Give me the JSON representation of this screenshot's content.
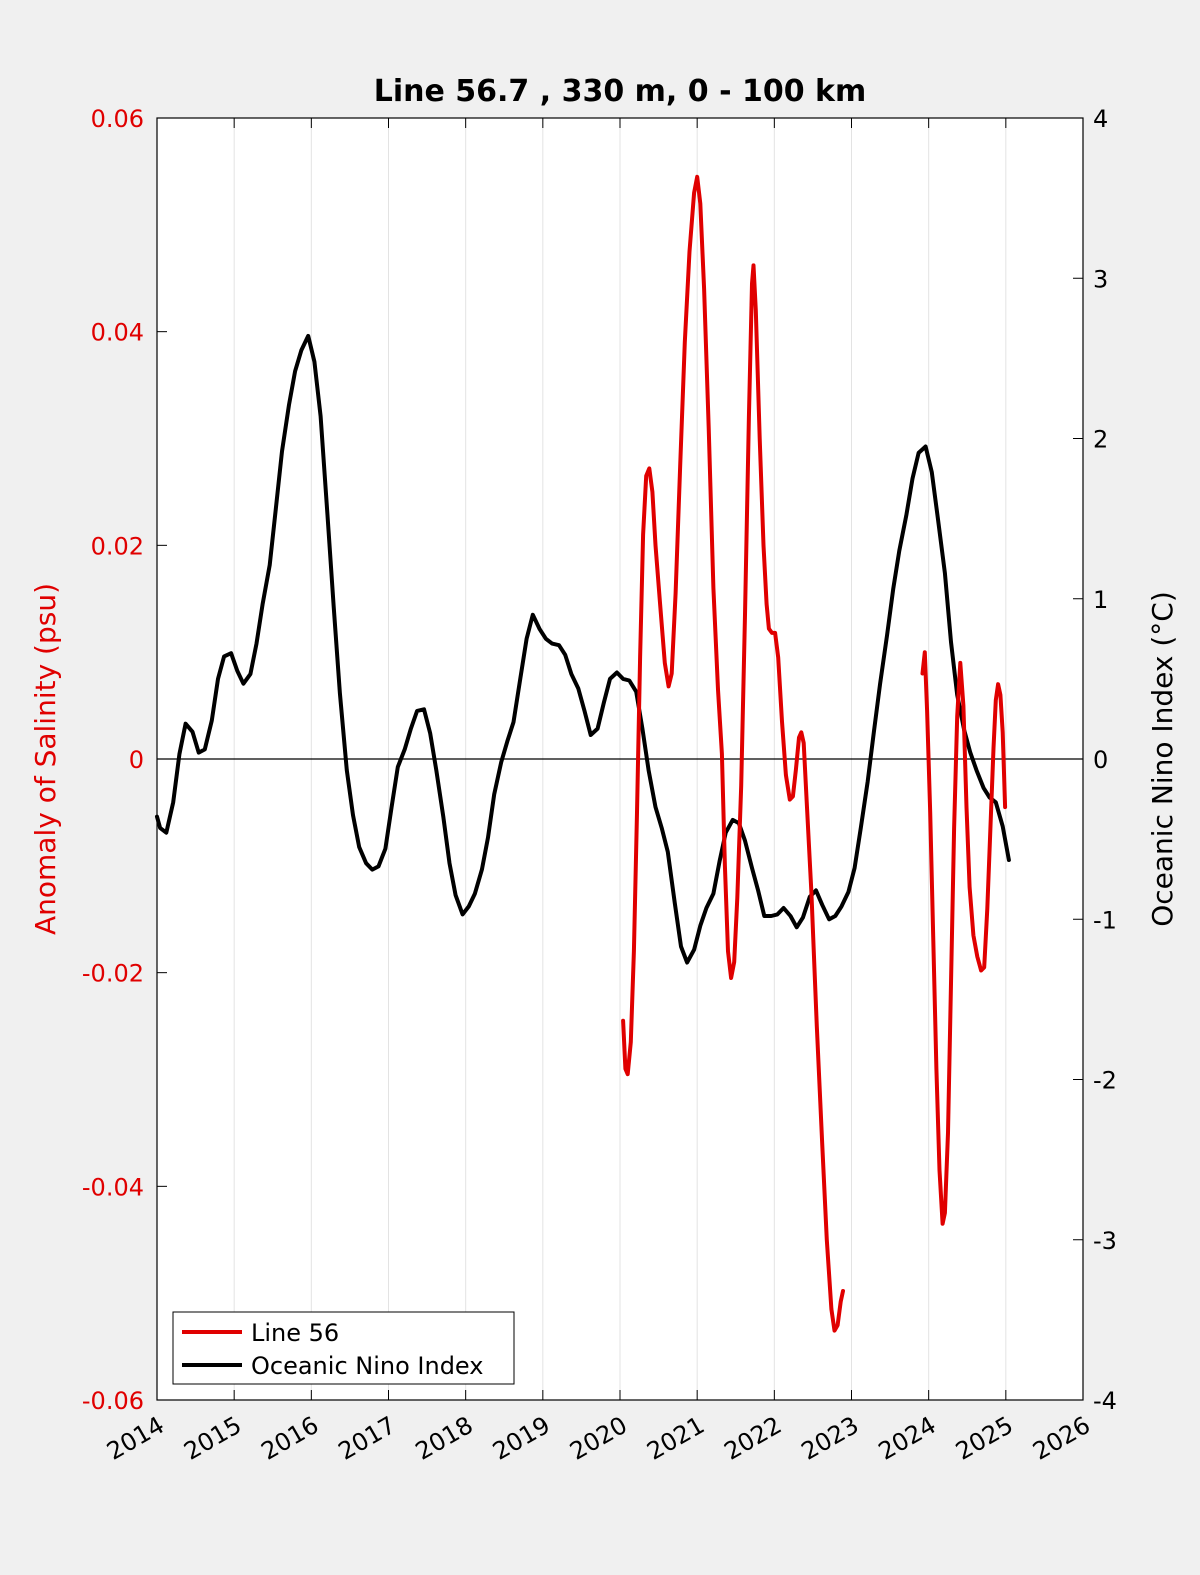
{
  "chart_data": {
    "type": "line",
    "title": "Line 56.7 , 330 m, 0 - 100 km",
    "xlabel": "",
    "ylabel_left": "Anomaly of Salinity (psu)",
    "ylabel_right": "Oceanic Nino Index (°C)",
    "xlim": [
      2014,
      2026
    ],
    "ylim_left": [
      -0.06,
      0.06
    ],
    "ylim_right": [
      -4,
      4
    ],
    "x_ticks": [
      "2014",
      "2015",
      "2016",
      "2017",
      "2018",
      "2019",
      "2020",
      "2021",
      "2022",
      "2023",
      "2024",
      "2025",
      "2026"
    ],
    "y_ticks_left": [
      "-0.06",
      "-0.04",
      "-0.02",
      "0",
      "0.02",
      "0.04",
      "0.06"
    ],
    "y_ticks_right": [
      "-4",
      "-3",
      "-2",
      "-1",
      "0",
      "1",
      "2",
      "3",
      "4"
    ],
    "grid": "vertical",
    "legend_position": "bottom-left",
    "colors": {
      "line56": "#e00000",
      "oni": "#000000"
    },
    "series": [
      {
        "name": "Line 56",
        "axis": "left",
        "color": "#e00000",
        "segments": [
          [
            [
              2020.04,
              -0.0245
            ],
            [
              2020.07,
              -0.029
            ],
            [
              2020.1,
              -0.0295
            ],
            [
              2020.14,
              -0.0265
            ],
            [
              2020.18,
              -0.018
            ],
            [
              2020.22,
              -0.005
            ],
            [
              2020.26,
              0.0095
            ],
            [
              2020.3,
              0.021
            ],
            [
              2020.34,
              0.0265
            ],
            [
              2020.38,
              0.0272
            ],
            [
              2020.42,
              0.025
            ],
            [
              2020.46,
              0.02
            ],
            [
              2020.52,
              0.0145
            ],
            [
              2020.58,
              0.009
            ],
            [
              2020.63,
              0.0068
            ],
            [
              2020.67,
              0.008
            ],
            [
              2020.72,
              0.0155
            ],
            [
              2020.78,
              0.0275
            ],
            [
              2020.84,
              0.039
            ],
            [
              2020.9,
              0.0475
            ],
            [
              2020.96,
              0.053
            ],
            [
              2021.0,
              0.0545
            ],
            [
              2021.04,
              0.052
            ],
            [
              2021.09,
              0.044
            ],
            [
              2021.15,
              0.031
            ],
            [
              2021.21,
              0.016
            ],
            [
              2021.27,
              0.0065
            ],
            [
              2021.32,
              0.0005
            ],
            [
              2021.36,
              -0.01
            ],
            [
              2021.4,
              -0.018
            ],
            [
              2021.44,
              -0.0205
            ],
            [
              2021.48,
              -0.019
            ],
            [
              2021.52,
              -0.013
            ],
            [
              2021.57,
              -0.0025
            ],
            [
              2021.62,
              0.0135
            ],
            [
              2021.67,
              0.032
            ],
            [
              2021.71,
              0.0445
            ],
            [
              2021.73,
              0.0462
            ],
            [
              2021.76,
              0.042
            ],
            [
              2021.81,
              0.03
            ],
            [
              2021.86,
              0.02
            ],
            [
              2021.9,
              0.0145
            ],
            [
              2021.93,
              0.0122
            ],
            [
              2021.97,
              0.0118
            ],
            [
              2022.01,
              0.0118
            ],
            [
              2022.05,
              0.0095
            ],
            [
              2022.1,
              0.0035
            ],
            [
              2022.15,
              -0.0015
            ],
            [
              2022.2,
              -0.0038
            ],
            [
              2022.24,
              -0.0035
            ],
            [
              2022.28,
              -0.001
            ],
            [
              2022.32,
              0.002
            ],
            [
              2022.35,
              0.0025
            ],
            [
              2022.38,
              0.0015
            ],
            [
              2022.42,
              -0.004
            ],
            [
              2022.48,
              -0.0125
            ],
            [
              2022.55,
              -0.025
            ],
            [
              2022.62,
              -0.036
            ],
            [
              2022.68,
              -0.045
            ],
            [
              2022.74,
              -0.0515
            ],
            [
              2022.78,
              -0.0535
            ],
            [
              2022.82,
              -0.053
            ],
            [
              2022.86,
              -0.0508
            ],
            [
              2022.89,
              -0.0498
            ]
          ],
          [
            [
              2023.92,
              0.008
            ],
            [
              2023.95,
              0.01
            ],
            [
              2023.98,
              0.0045
            ],
            [
              2024.02,
              -0.005
            ],
            [
              2024.06,
              -0.017
            ],
            [
              2024.1,
              -0.029
            ],
            [
              2024.14,
              -0.0385
            ],
            [
              2024.18,
              -0.0435
            ],
            [
              2024.21,
              -0.0425
            ],
            [
              2024.25,
              -0.035
            ],
            [
              2024.29,
              -0.021
            ],
            [
              2024.33,
              -0.0065
            ],
            [
              2024.37,
              0.004
            ],
            [
              2024.41,
              0.009
            ],
            [
              2024.45,
              0.005
            ],
            [
              2024.49,
              -0.0045
            ],
            [
              2024.53,
              -0.012
            ],
            [
              2024.58,
              -0.0165
            ],
            [
              2024.63,
              -0.0185
            ],
            [
              2024.68,
              -0.0198
            ],
            [
              2024.72,
              -0.0195
            ],
            [
              2024.76,
              -0.014
            ],
            [
              2024.8,
              -0.0065
            ],
            [
              2024.84,
              0.001
            ],
            [
              2024.87,
              0.0055
            ],
            [
              2024.9,
              0.007
            ],
            [
              2024.93,
              0.006
            ],
            [
              2024.96,
              0.0025
            ],
            [
              2024.99,
              -0.0045
            ]
          ]
        ]
      },
      {
        "name": "Oceanic Nino Index",
        "axis": "right",
        "color": "#000000",
        "values": [
          [
            2014.0,
            -0.36
          ],
          [
            2014.04,
            -0.43
          ],
          [
            2014.12,
            -0.46
          ],
          [
            2014.21,
            -0.27
          ],
          [
            2014.29,
            0.03
          ],
          [
            2014.37,
            0.22
          ],
          [
            2014.46,
            0.17
          ],
          [
            2014.54,
            0.04
          ],
          [
            2014.62,
            0.06
          ],
          [
            2014.71,
            0.24
          ],
          [
            2014.79,
            0.5
          ],
          [
            2014.87,
            0.64
          ],
          [
            2014.96,
            0.66
          ],
          [
            2015.04,
            0.55
          ],
          [
            2015.12,
            0.47
          ],
          [
            2015.21,
            0.53
          ],
          [
            2015.29,
            0.72
          ],
          [
            2015.37,
            0.97
          ],
          [
            2015.46,
            1.21
          ],
          [
            2015.54,
            1.56
          ],
          [
            2015.62,
            1.92
          ],
          [
            2015.71,
            2.21
          ],
          [
            2015.79,
            2.42
          ],
          [
            2015.87,
            2.55
          ],
          [
            2015.96,
            2.64
          ],
          [
            2016.04,
            2.48
          ],
          [
            2016.12,
            2.14
          ],
          [
            2016.21,
            1.52
          ],
          [
            2016.29,
            0.95
          ],
          [
            2016.37,
            0.41
          ],
          [
            2016.46,
            -0.07
          ],
          [
            2016.54,
            -0.35
          ],
          [
            2016.62,
            -0.55
          ],
          [
            2016.71,
            -0.65
          ],
          [
            2016.79,
            -0.69
          ],
          [
            2016.87,
            -0.67
          ],
          [
            2016.96,
            -0.56
          ],
          [
            2017.04,
            -0.3
          ],
          [
            2017.12,
            -0.05
          ],
          [
            2017.21,
            0.06
          ],
          [
            2017.29,
            0.19
          ],
          [
            2017.37,
            0.3
          ],
          [
            2017.46,
            0.31
          ],
          [
            2017.54,
            0.16
          ],
          [
            2017.62,
            -0.07
          ],
          [
            2017.71,
            -0.36
          ],
          [
            2017.79,
            -0.65
          ],
          [
            2017.87,
            -0.85
          ],
          [
            2017.96,
            -0.97
          ],
          [
            2018.04,
            -0.92
          ],
          [
            2018.12,
            -0.84
          ],
          [
            2018.21,
            -0.69
          ],
          [
            2018.29,
            -0.49
          ],
          [
            2018.37,
            -0.22
          ],
          [
            2018.46,
            -0.02
          ],
          [
            2018.54,
            0.11
          ],
          [
            2018.62,
            0.23
          ],
          [
            2018.71,
            0.51
          ],
          [
            2018.79,
            0.75
          ],
          [
            2018.87,
            0.9
          ],
          [
            2018.96,
            0.81
          ],
          [
            2019.04,
            0.75
          ],
          [
            2019.12,
            0.72
          ],
          [
            2019.21,
            0.71
          ],
          [
            2019.29,
            0.65
          ],
          [
            2019.37,
            0.53
          ],
          [
            2019.46,
            0.44
          ],
          [
            2019.54,
            0.3
          ],
          [
            2019.62,
            0.15
          ],
          [
            2019.71,
            0.19
          ],
          [
            2019.79,
            0.35
          ],
          [
            2019.87,
            0.5
          ],
          [
            2019.96,
            0.54
          ],
          [
            2020.04,
            0.5
          ],
          [
            2020.12,
            0.49
          ],
          [
            2020.21,
            0.42
          ],
          [
            2020.29,
            0.19
          ],
          [
            2020.37,
            -0.07
          ],
          [
            2020.46,
            -0.3
          ],
          [
            2020.54,
            -0.43
          ],
          [
            2020.62,
            -0.58
          ],
          [
            2020.71,
            -0.9
          ],
          [
            2020.79,
            -1.17
          ],
          [
            2020.87,
            -1.27
          ],
          [
            2020.96,
            -1.19
          ],
          [
            2021.04,
            -1.04
          ],
          [
            2021.12,
            -0.93
          ],
          [
            2021.21,
            -0.84
          ],
          [
            2021.29,
            -0.64
          ],
          [
            2021.37,
            -0.46
          ],
          [
            2021.46,
            -0.38
          ],
          [
            2021.54,
            -0.4
          ],
          [
            2021.62,
            -0.51
          ],
          [
            2021.71,
            -0.68
          ],
          [
            2021.79,
            -0.82
          ],
          [
            2021.87,
            -0.98
          ],
          [
            2021.96,
            -0.98
          ],
          [
            2022.04,
            -0.97
          ],
          [
            2022.12,
            -0.93
          ],
          [
            2022.21,
            -0.98
          ],
          [
            2022.29,
            -1.05
          ],
          [
            2022.37,
            -0.99
          ],
          [
            2022.46,
            -0.86
          ],
          [
            2022.54,
            -0.82
          ],
          [
            2022.62,
            -0.91
          ],
          [
            2022.71,
            -1.0
          ],
          [
            2022.79,
            -0.98
          ],
          [
            2022.87,
            -0.92
          ],
          [
            2022.96,
            -0.83
          ],
          [
            2023.04,
            -0.68
          ],
          [
            2023.12,
            -0.43
          ],
          [
            2023.21,
            -0.14
          ],
          [
            2023.29,
            0.17
          ],
          [
            2023.37,
            0.47
          ],
          [
            2023.46,
            0.77
          ],
          [
            2023.54,
            1.06
          ],
          [
            2023.62,
            1.3
          ],
          [
            2023.71,
            1.52
          ],
          [
            2023.79,
            1.75
          ],
          [
            2023.87,
            1.91
          ],
          [
            2023.96,
            1.95
          ],
          [
            2024.04,
            1.79
          ],
          [
            2024.12,
            1.5
          ],
          [
            2024.21,
            1.16
          ],
          [
            2024.29,
            0.73
          ],
          [
            2024.37,
            0.4
          ],
          [
            2024.46,
            0.18
          ],
          [
            2024.54,
            0.04
          ],
          [
            2024.62,
            -0.07
          ],
          [
            2024.71,
            -0.18
          ],
          [
            2024.79,
            -0.24
          ],
          [
            2024.87,
            -0.27
          ],
          [
            2024.96,
            -0.42
          ],
          [
            2025.04,
            -0.63
          ]
        ]
      }
    ]
  }
}
